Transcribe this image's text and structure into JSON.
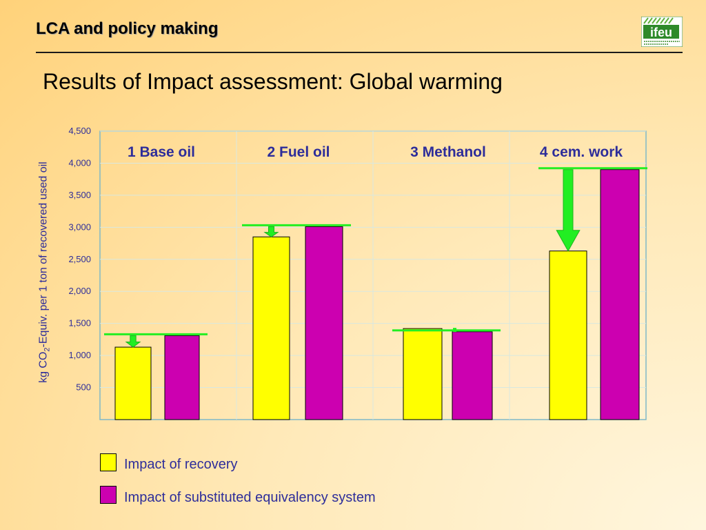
{
  "header": {
    "title": "LCA and policy making",
    "logo_text": "ifeu"
  },
  "slide": {
    "title": "Results of Impact assessment: Global warming"
  },
  "colors": {
    "recovery": "#ffff00",
    "substituted": "#cc00b0",
    "arrow": "#22ee22",
    "text_blue": "#2d2d9a"
  },
  "chart_data": {
    "type": "bar",
    "categories": [
      "1 Base oil",
      "2 Fuel oil",
      "3 Methanol",
      "4 cem. work"
    ],
    "series": [
      {
        "name": "Impact of recovery",
        "values": [
          1130,
          2850,
          1420,
          2630
        ]
      },
      {
        "name": "Impact of substituted equivalency system",
        "values": [
          1310,
          3010,
          1370,
          3900
        ]
      }
    ],
    "ylabel_prefix": "kg CO",
    "ylabel_sub": "2",
    "ylabel_suffix": "-Equiv. per 1 ton of recovered used oil",
    "ylim": [
      0,
      4500
    ],
    "yticks": [
      500,
      1000,
      1500,
      2000,
      2500,
      3000,
      3500,
      4000,
      4500
    ],
    "ytick_labels": [
      "500",
      "1,000",
      "1,500",
      "2,000",
      "2,500",
      "3,000",
      "3,500",
      "4,000",
      "4,500"
    ],
    "grid": true,
    "legend_position": "bottom-left"
  },
  "legend": {
    "recovery_label": "Impact of recovery",
    "substituted_label": "Impact of substituted equivalency system"
  }
}
